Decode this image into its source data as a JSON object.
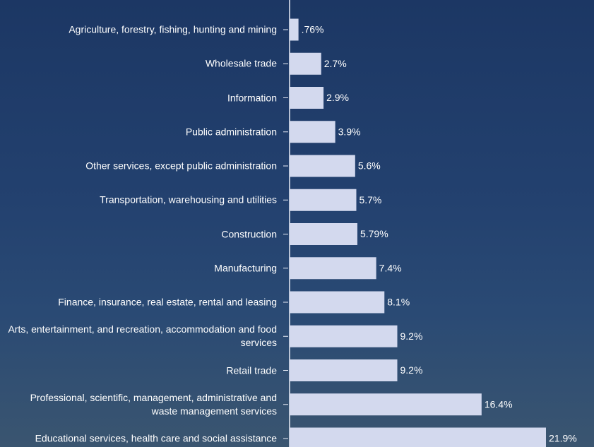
{
  "chart_data": {
    "type": "bar",
    "orientation": "horizontal",
    "color": "#d3d9ee",
    "categories": [
      "Agriculture, forestry, fishing, hunting and mining",
      "Wholesale trade",
      "Information",
      "Public administration",
      "Other services, except public administration",
      "Transportation, warehousing and utilities",
      "Construction",
      "Manufacturing",
      "Finance, insurance, real estate, rental and leasing",
      "Arts, entertainment, and recreation, accommodation and food services",
      "Retail trade",
      "Professional, scientific, management, administrative and waste management services",
      "Educational services, health care and social assistance"
    ],
    "values": [
      0.76,
      2.7,
      2.9,
      3.9,
      5.6,
      5.7,
      5.79,
      7.4,
      8.1,
      9.2,
      9.2,
      16.4,
      21.9
    ],
    "value_labels": [
      ".76%",
      "2.7%",
      "2.9%",
      "3.9%",
      "5.6%",
      "5.7%",
      "5.79%",
      "7.4%",
      "8.1%",
      "9.2%",
      "9.2%",
      "16.4%",
      "21.9%"
    ]
  }
}
